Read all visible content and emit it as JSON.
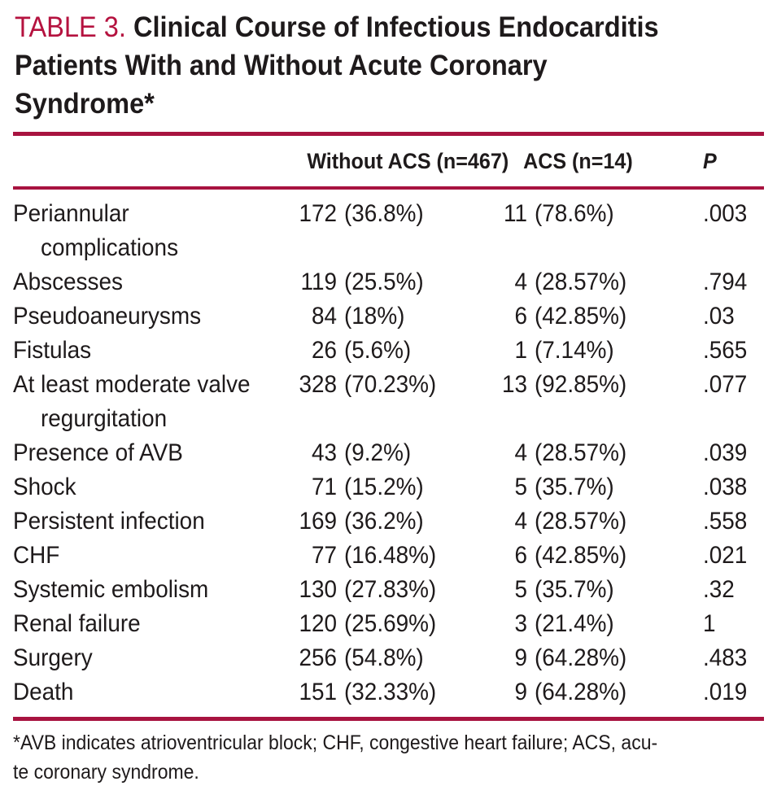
{
  "title": {
    "label": "TABLE 3.",
    "line1_rest": "Clinical Course of Infectious Endocarditis",
    "line2": "Patients With and Without Acute Coronary",
    "line3": "Syndrome*"
  },
  "table": {
    "columns": {
      "without": "Without ACS (n=467)",
      "acs": "ACS (n=14)",
      "p": "P"
    },
    "rows": [
      {
        "label": "Periannular",
        "label2": "complications",
        "without_n": "172",
        "without_pct": "(36.8%)",
        "acs_n": "11",
        "acs_pct": "(78.6%)",
        "p": ".003"
      },
      {
        "label": "Abscesses",
        "without_n": "119",
        "without_pct": "(25.5%)",
        "acs_n": "4",
        "acs_pct": "(28.57%)",
        "p": ".794"
      },
      {
        "label": "Pseudoaneurysms",
        "without_n": "84",
        "without_pct": "(18%)",
        "acs_n": "6",
        "acs_pct": "(42.85%)",
        "p": ".03"
      },
      {
        "label": "Fistulas",
        "without_n": "26",
        "without_pct": "(5.6%)",
        "acs_n": "1",
        "acs_pct": "(7.14%)",
        "p": ".565"
      },
      {
        "label": "At least moderate valve",
        "label2": "regurgitation",
        "without_n": "328",
        "without_pct": "(70.23%)",
        "acs_n": "13",
        "acs_pct": "(92.85%)",
        "p": ".077"
      },
      {
        "label": "Presence of AVB",
        "without_n": "43",
        "without_pct": "(9.2%)",
        "acs_n": "4",
        "acs_pct": "(28.57%)",
        "p": ".039"
      },
      {
        "label": "Shock",
        "without_n": "71",
        "without_pct": "(15.2%)",
        "acs_n": "5",
        "acs_pct": "(35.7%)",
        "p": ".038"
      },
      {
        "label": "Persistent infection",
        "without_n": "169",
        "without_pct": "(36.2%)",
        "acs_n": "4",
        "acs_pct": "(28.57%)",
        "p": ".558"
      },
      {
        "label": "CHF",
        "without_n": "77",
        "without_pct": "(16.48%)",
        "acs_n": "6",
        "acs_pct": "(42.85%)",
        "p": ".021"
      },
      {
        "label": "Systemic embolism",
        "without_n": "130",
        "without_pct": "(27.83%)",
        "acs_n": "5",
        "acs_pct": "(35.7%)",
        "p": ".32"
      },
      {
        "label": "Renal failure",
        "without_n": "120",
        "without_pct": "(25.69%)",
        "acs_n": "3",
        "acs_pct": "(21.4%)",
        "p": "1"
      },
      {
        "label": "Surgery",
        "without_n": "256",
        "without_pct": "(54.8%)",
        "acs_n": "9",
        "acs_pct": "(64.28%)",
        "p": ".483"
      },
      {
        "label": "Death",
        "without_n": "151",
        "without_pct": "(32.33%)",
        "acs_n": "9",
        "acs_pct": "(64.28%)",
        "p": ".019"
      }
    ]
  },
  "footnote": {
    "line1": "*AVB indicates atrioventricular block; CHF, congestive heart failure; ACS, acu-",
    "line2": "te coronary syndrome."
  },
  "colors": {
    "accent_red": "#B5123F",
    "rule_red": "#A81340",
    "text": "#1E1A1B"
  }
}
